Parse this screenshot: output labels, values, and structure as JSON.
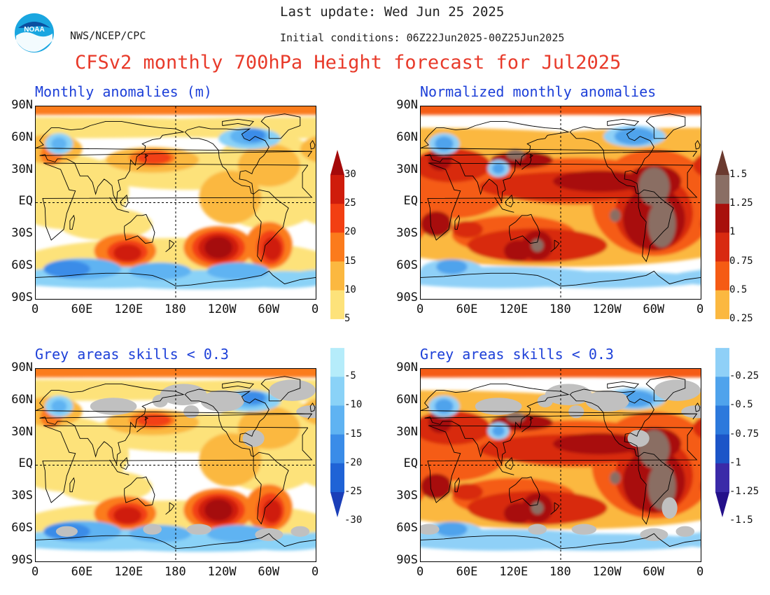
{
  "header": {
    "last_update": "Last update: Wed Jun 25 2025",
    "initial_conditions": "Initial conditions: 06Z22Jun2025-00Z25Jun2025",
    "agency": "NWS/NCEP/CPC",
    "logo_text": "NOAA",
    "title": "CFSv2 monthly 700hPa Height forecast for Jul2025"
  },
  "panels": {
    "top_left": {
      "title": "Monthly anomalies (m)"
    },
    "top_right": {
      "title": "Normalized monthly anomalies"
    },
    "bottom_left": {
      "title": "Grey areas skills < 0.3"
    },
    "bottom_right": {
      "title": "Grey areas skills < 0.3"
    }
  },
  "axes": {
    "lat_labels": [
      "90N",
      "60N",
      "30N",
      "EQ",
      "30S",
      "60S",
      "90S"
    ],
    "lon_labels": [
      "0",
      "60E",
      "120E",
      "180",
      "120W",
      "60W",
      "0"
    ]
  },
  "colorbar_m": {
    "labels": [
      "30",
      "25",
      "20",
      "15",
      "10",
      "5",
      "-5",
      "-10",
      "-15",
      "-20",
      "-25",
      "-30"
    ],
    "colors": [
      "#a50a0a",
      "#cf1c0c",
      "#f23f12",
      "#fb7b1c",
      "#fbb840",
      "#fde27a",
      "#ffffff",
      "#b5ecfa",
      "#8ad2f7",
      "#5fb3f2",
      "#3a8ce8",
      "#1f63d6",
      "#1b3fb8"
    ]
  },
  "colorbar_norm": {
    "labels": [
      "1.5",
      "1.25",
      "1",
      "0.75",
      "0.5",
      "0.25",
      "-0.25",
      "-0.5",
      "-0.75",
      "-1",
      "-1.25",
      "-1.5"
    ],
    "colors": [
      "#6b3a2f",
      "#8a6e64",
      "#a8100c",
      "#d82a10",
      "#f55b14",
      "#fbb840",
      "#ffffff",
      "#8fd0f7",
      "#4fa3ec",
      "#2c79dc",
      "#1c55c8",
      "#3a2aa8",
      "#24108a"
    ]
  }
}
